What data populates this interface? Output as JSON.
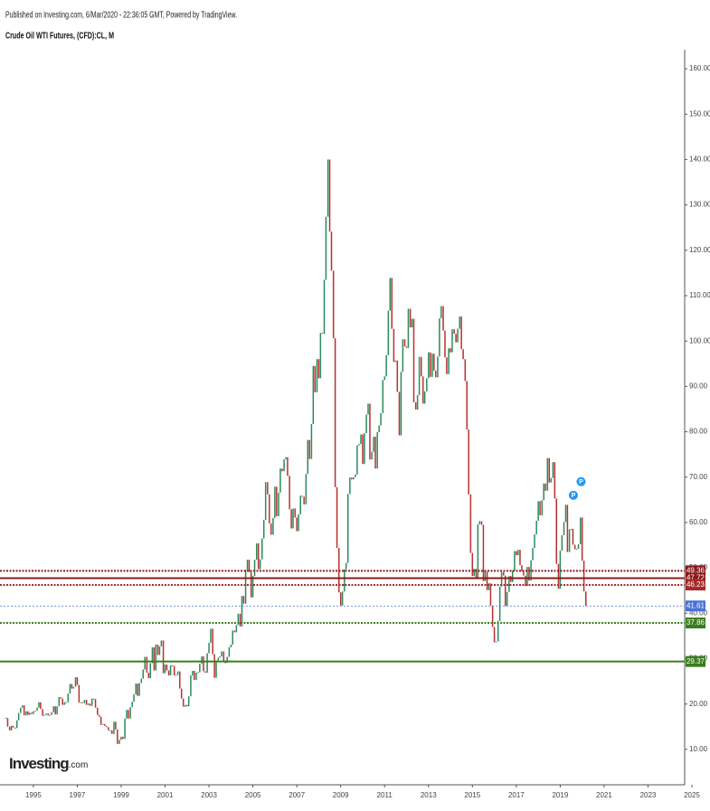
{
  "chart_data": {
    "type": "candlestick",
    "header": "Published on Investing.com, 6/Mar/2020 - 22:36:05 GMT, Powered by TradingView.",
    "title": "Crude Oil WTI Futures, (CFD):CL, M",
    "logo": {
      "brand": "Investing",
      "suffix": ".com"
    },
    "up_color": "#2b8a5e",
    "down_color": "#b8312f",
    "xlim": [
      1993.48,
      2024.67
    ],
    "xticks": [
      1995,
      1997,
      1999,
      2001,
      2003,
      2005,
      2007,
      2009,
      2011,
      2013,
      2015,
      2017,
      2019,
      2021,
      2023,
      2025
    ],
    "ylim": [
      2.2,
      164.2
    ],
    "yticks": [
      {
        "value": 10,
        "label": "10.00"
      },
      {
        "value": 20,
        "label": "20.00"
      },
      {
        "value": 30,
        "label": "30.00"
      },
      {
        "value": 40,
        "label": "40.00"
      },
      {
        "value": 50,
        "label": "50.00"
      },
      {
        "value": 60,
        "label": "60.00"
      },
      {
        "value": 70,
        "label": "70.00"
      },
      {
        "value": 80,
        "label": "80.00"
      },
      {
        "value": 90,
        "label": "90.00"
      },
      {
        "value": 100,
        "label": "100.00"
      },
      {
        "value": 110,
        "label": "110.00"
      },
      {
        "value": 120,
        "label": "120.00"
      },
      {
        "value": 130,
        "label": "130.00"
      },
      {
        "value": 140,
        "label": "140.00"
      },
      {
        "value": 150,
        "label": "150.00"
      },
      {
        "value": 160,
        "label": "160.00"
      }
    ],
    "levels": [
      {
        "value": 49.36,
        "color": "#8b1a1a",
        "style": "dotted"
      },
      {
        "value": 47.72,
        "color": "#8b1a1a",
        "style": "solid"
      },
      {
        "value": 46.23,
        "color": "#a52a2a",
        "style": "dotted"
      },
      {
        "value": 41.61,
        "color": "#4a72d8",
        "style": "thin"
      },
      {
        "value": 37.86,
        "color": "#3a7d1e",
        "style": "dotted"
      },
      {
        "value": 29.37,
        "color": "#3a7d1e",
        "style": "solid"
      }
    ],
    "annotations": [
      {
        "text": "P",
        "x": 2019.6,
        "y": 66
      },
      {
        "text": "P",
        "x": 2019.95,
        "y": 69
      }
    ],
    "x": [
      1993.75,
      1993.83,
      1993.92,
      1994.0,
      1994.08,
      1994.17,
      1994.25,
      1994.33,
      1994.42,
      1994.5,
      1994.58,
      1994.67,
      1994.75,
      1994.83,
      1994.92,
      1995.0,
      1995.08,
      1995.17,
      1995.25,
      1995.33,
      1995.42,
      1995.5,
      1995.58,
      1995.67,
      1995.75,
      1995.83,
      1995.92,
      1996.0,
      1996.08,
      1996.17,
      1996.25,
      1996.33,
      1996.42,
      1996.5,
      1996.58,
      1996.67,
      1996.75,
      1996.83,
      1996.92,
      1997.0,
      1997.08,
      1997.17,
      1997.25,
      1997.33,
      1997.42,
      1997.5,
      1997.58,
      1997.67,
      1997.75,
      1997.83,
      1997.92,
      1998.0,
      1998.08,
      1998.17,
      1998.25,
      1998.33,
      1998.42,
      1998.5,
      1998.58,
      1998.67,
      1998.75,
      1998.83,
      1998.92,
      1999.0,
      1999.08,
      1999.17,
      1999.25,
      1999.33,
      1999.42,
      1999.5,
      1999.58,
      1999.67,
      1999.75,
      1999.83,
      1999.92,
      2000.0,
      2000.08,
      2000.17,
      2000.25,
      2000.33,
      2000.42,
      2000.5,
      2000.58,
      2000.67,
      2000.75,
      2000.83,
      2000.92,
      2001.0,
      2001.08,
      2001.17,
      2001.25,
      2001.33,
      2001.42,
      2001.5,
      2001.58,
      2001.67,
      2001.75,
      2001.83,
      2001.92,
      2002.0,
      2002.08,
      2002.17,
      2002.25,
      2002.33,
      2002.42,
      2002.5,
      2002.58,
      2002.67,
      2002.75,
      2002.83,
      2002.92,
      2003.0,
      2003.08,
      2003.17,
      2003.25,
      2003.33,
      2003.42,
      2003.5,
      2003.58,
      2003.67,
      2003.75,
      2003.83,
      2003.92,
      2004.0,
      2004.08,
      2004.17,
      2004.25,
      2004.33,
      2004.42,
      2004.5,
      2004.58,
      2004.67,
      2004.75,
      2004.83,
      2004.92,
      2005.0,
      2005.08,
      2005.17,
      2005.25,
      2005.33,
      2005.42,
      2005.5,
      2005.58,
      2005.67,
      2005.75,
      2005.83,
      2005.92,
      2006.0,
      2006.08,
      2006.17,
      2006.25,
      2006.33,
      2006.42,
      2006.5,
      2006.58,
      2006.67,
      2006.75,
      2006.83,
      2006.92,
      2007.0,
      2007.08,
      2007.17,
      2007.25,
      2007.33,
      2007.42,
      2007.5,
      2007.58,
      2007.67,
      2007.75,
      2007.83,
      2007.92,
      2008.0,
      2008.08,
      2008.17,
      2008.25,
      2008.33,
      2008.42,
      2008.5,
      2008.58,
      2008.67,
      2008.75,
      2008.83,
      2008.92,
      2009.0,
      2009.08,
      2009.17,
      2009.25,
      2009.33,
      2009.42,
      2009.5,
      2009.58,
      2009.67,
      2009.75,
      2009.83,
      2009.92,
      2010.0,
      2010.08,
      2010.17,
      2010.25,
      2010.33,
      2010.42,
      2010.5,
      2010.58,
      2010.67,
      2010.75,
      2010.83,
      2010.92,
      2011.0,
      2011.08,
      2011.17,
      2011.25,
      2011.33,
      2011.42,
      2011.5,
      2011.58,
      2011.67,
      2011.75,
      2011.83,
      2011.92,
      2012.0,
      2012.08,
      2012.17,
      2012.25,
      2012.33,
      2012.42,
      2012.5,
      2012.58,
      2012.67,
      2012.75,
      2012.83,
      2012.92,
      2013.0,
      2013.08,
      2013.17,
      2013.25,
      2013.33,
      2013.42,
      2013.5,
      2013.58,
      2013.67,
      2013.75,
      2013.83,
      2013.92,
      2014.0,
      2014.08,
      2014.17,
      2014.25,
      2014.33,
      2014.42,
      2014.5,
      2014.58,
      2014.67,
      2014.75,
      2014.83,
      2014.92,
      2015.0,
      2015.08,
      2015.17,
      2015.25,
      2015.33,
      2015.42,
      2015.5,
      2015.58,
      2015.67,
      2015.75,
      2015.83,
      2015.92,
      2016.0,
      2016.08,
      2016.17,
      2016.25,
      2016.33,
      2016.42,
      2016.5,
      2016.58,
      2016.67,
      2016.75,
      2016.83,
      2016.92,
      2017.0,
      2017.08,
      2017.17,
      2017.25,
      2017.33,
      2017.42,
      2017.5,
      2017.58,
      2017.67,
      2017.75,
      2017.83,
      2017.92,
      2018.0,
      2018.08,
      2018.17,
      2018.25,
      2018.33,
      2018.42,
      2018.5,
      2018.58,
      2018.67,
      2018.75,
      2018.83,
      2018.92,
      2019.0,
      2019.08,
      2019.17,
      2019.25,
      2019.33,
      2019.42,
      2019.5,
      2019.58,
      2019.67,
      2019.75,
      2019.83,
      2019.92,
      2020.0,
      2020.08,
      2020.17
    ],
    "close": [
      16.9,
      15.0,
      14.2,
      15.2,
      14.8,
      14.7,
      16.4,
      18.0,
      19.2,
      19.7,
      17.5,
      18.4,
      17.6,
      18.1,
      17.8,
      18.4,
      18.5,
      19.2,
      20.4,
      18.9,
      17.4,
      17.6,
      17.9,
      17.5,
      17.6,
      18.2,
      19.5,
      17.7,
      19.5,
      21.5,
      21.2,
      19.8,
      20.4,
      20.4,
      22.3,
      24.4,
      23.4,
      23.8,
      25.9,
      24.2,
      20.3,
      20.4,
      20.2,
      20.9,
      19.8,
      20.1,
      19.6,
      21.2,
      21.1,
      19.2,
      17.6,
      17.2,
      15.4,
      15.6,
      15.2,
      14.9,
      14.2,
      14.2,
      13.4,
      16.1,
      14.4,
      11.2,
      12.1,
      12.8,
      12.3,
      16.8,
      18.7,
      16.8,
      19.3,
      20.5,
      22.1,
      24.5,
      21.8,
      24.6,
      25.6,
      27.6,
      30.4,
      26.9,
      25.7,
      29.0,
      32.5,
      27.4,
      33.1,
      30.8,
      32.7,
      34.0,
      26.8,
      28.7,
      27.4,
      26.3,
      28.5,
      28.4,
      26.3,
      26.4,
      27.2,
      23.4,
      21.2,
      19.4,
      19.8,
      19.5,
      21.7,
      26.3,
      27.3,
      25.3,
      26.9,
      27.0,
      28.9,
      30.5,
      27.2,
      26.9,
      31.2,
      33.5,
      36.6,
      31.0,
      25.8,
      29.6,
      30.2,
      30.5,
      31.6,
      29.2,
      29.1,
      30.4,
      32.5,
      33.1,
      36.2,
      35.8,
      37.4,
      39.9,
      37.1,
      43.8,
      42.1,
      49.6,
      51.8,
      49.1,
      43.5,
      48.2,
      51.8,
      55.4,
      49.7,
      51.9,
      56.5,
      60.6,
      68.9,
      66.2,
      59.8,
      57.3,
      61.0,
      67.9,
      61.4,
      66.6,
      71.9,
      71.3,
      73.9,
      74.4,
      70.3,
      62.9,
      58.7,
      63.1,
      61.1,
      58.1,
      61.8,
      65.9,
      65.7,
      64.0,
      70.7,
      78.2,
      74.0,
      81.7,
      94.5,
      88.7,
      96.0,
      91.8,
      101.8,
      101.6,
      113.5,
      127.4,
      140.0,
      124.1,
      115.5,
      100.6,
      67.8,
      54.4,
      44.6,
      41.7,
      44.8,
      49.7,
      51.1,
      66.3,
      69.9,
      69.5,
      70.0,
      70.6,
      77.0,
      77.3,
      79.4,
      72.9,
      79.7,
      83.8,
      86.2,
      73.9,
      75.6,
      78.9,
      71.9,
      79.9,
      81.4,
      84.1,
      91.4,
      92.2,
      96.9,
      106.7,
      113.9,
      102.7,
      95.4,
      95.7,
      88.8,
      79.2,
      93.2,
      100.4,
      98.8,
      98.5,
      107.1,
      103.0,
      104.9,
      86.5,
      84.9,
      88.1,
      96.5,
      92.2,
      86.2,
      88.9,
      91.8,
      97.5,
      92.1,
      97.2,
      93.5,
      92.0,
      96.6,
      105.0,
      107.7,
      102.3,
      96.4,
      92.7,
      98.4,
      97.5,
      102.6,
      101.6,
      99.7,
      102.7,
      105.4,
      98.2,
      96.0,
      91.2,
      80.5,
      66.2,
      53.3,
      48.2,
      49.8,
      47.6,
      59.6,
      60.3,
      59.5,
      47.1,
      49.2,
      45.1,
      46.6,
      41.7,
      37.0,
      33.6,
      33.8,
      38.3,
      45.9,
      49.1,
      48.3,
      41.6,
      44.7,
      48.2,
      46.9,
      49.4,
      53.7,
      52.8,
      54.0,
      50.6,
      49.3,
      48.3,
      46.0,
      50.2,
      47.2,
      51.7,
      54.4,
      57.4,
      60.4,
      64.7,
      61.6,
      64.9,
      68.6,
      67.0,
      74.2,
      68.8,
      69.8,
      73.3,
      65.3,
      50.9,
      45.4,
      53.8,
      57.2,
      60.1,
      63.9,
      53.5,
      58.5,
      58.6,
      55.1,
      54.1,
      54.2,
      55.2,
      61.1,
      51.6,
      44.8,
      41.61
    ]
  }
}
